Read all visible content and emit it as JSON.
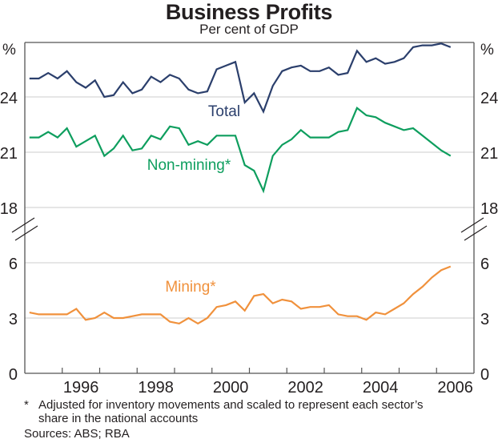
{
  "title": "Business Profits",
  "subtitle": "Per cent of GDP",
  "footnotes": {
    "asterisk": "*",
    "note_line1": "Adjusted for inventory movements and scaled to represent each sector’s",
    "note_line2": "share in the national accounts",
    "sources": "Sources: ABS; RBA"
  },
  "colors": {
    "total": "#2b3f6c",
    "non_mining": "#0e9e5e",
    "mining": "#f0913c",
    "grid": "#cccccc",
    "axis": "#555555"
  },
  "chart_data": {
    "type": "line",
    "title": "Business Profits",
    "subtitle": "Per cent of GDP",
    "ylabel_left": "%",
    "ylabel_right": "%",
    "x_start": "1995-Q1",
    "x_frequency": "quarterly",
    "xlim": [
      1995.0,
      2007.0
    ],
    "x_tick_labels": [
      "1996",
      "1998",
      "2000",
      "2002",
      "2004",
      "2006"
    ],
    "grid": true,
    "panels": [
      {
        "name": "upper",
        "ylim": [
          17.5,
          27
        ],
        "y_ticks": [
          18,
          21,
          24
        ],
        "series": [
          {
            "name": "Total",
            "label": "Total",
            "color_key": "total",
            "values": [
              25.0,
              25.0,
              25.3,
              25.0,
              25.4,
              24.8,
              24.5,
              24.9,
              24.0,
              24.1,
              24.8,
              24.2,
              24.4,
              25.1,
              24.8,
              25.2,
              25.0,
              24.4,
              24.2,
              24.3,
              25.5,
              25.7,
              25.9,
              23.7,
              24.2,
              23.2,
              24.6,
              25.4,
              25.6,
              25.7,
              25.4,
              25.4,
              25.6,
              25.2,
              25.3,
              26.5,
              25.9,
              26.1,
              25.8,
              25.9,
              26.1,
              26.7,
              26.8,
              26.8,
              26.9,
              26.7
            ]
          },
          {
            "name": "Non-mining*",
            "label": "Non-mining*",
            "color_key": "non_mining",
            "values": [
              21.8,
              21.8,
              22.1,
              21.8,
              22.3,
              21.3,
              21.6,
              21.9,
              20.8,
              21.2,
              21.9,
              21.1,
              21.2,
              21.9,
              21.7,
              22.4,
              22.3,
              21.4,
              21.6,
              21.4,
              21.9,
              21.9,
              21.9,
              20.3,
              20.0,
              18.9,
              20.8,
              21.4,
              21.7,
              22.2,
              21.8,
              21.8,
              21.8,
              22.1,
              22.2,
              23.4,
              23.0,
              22.9,
              22.6,
              22.4,
              22.2,
              22.3,
              21.9,
              21.5,
              21.1,
              20.8
            ]
          }
        ]
      },
      {
        "name": "lower",
        "ylim": [
          0,
          7.5
        ],
        "y_ticks": [
          0,
          3,
          6
        ],
        "series": [
          {
            "name": "Mining*",
            "label": "Mining*",
            "color_key": "mining",
            "values": [
              3.3,
              3.2,
              3.2,
              3.2,
              3.2,
              3.5,
              2.9,
              3.0,
              3.3,
              3.0,
              3.0,
              3.1,
              3.2,
              3.2,
              3.2,
              2.8,
              2.7,
              3.0,
              2.7,
              3.0,
              3.6,
              3.7,
              3.9,
              3.4,
              4.2,
              4.3,
              3.8,
              4.0,
              3.9,
              3.5,
              3.6,
              3.6,
              3.7,
              3.2,
              3.1,
              3.1,
              2.9,
              3.3,
              3.2,
              3.5,
              3.8,
              4.3,
              4.7,
              5.2,
              5.6,
              5.8
            ]
          }
        ]
      }
    ]
  }
}
